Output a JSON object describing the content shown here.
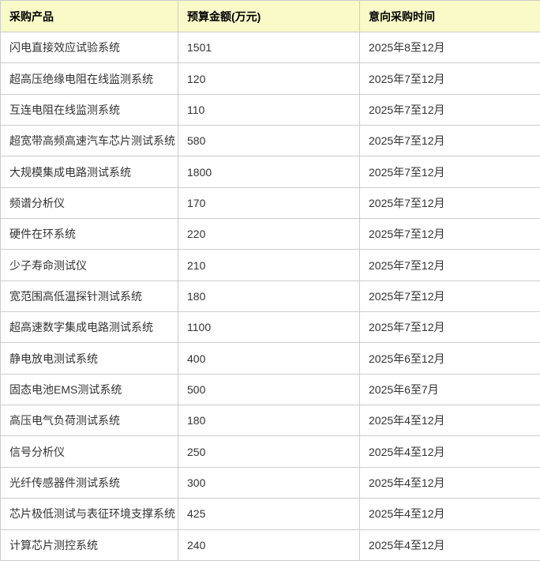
{
  "table": {
    "headers": [
      "采购产品",
      "预算金额(万元)",
      "意向采购时间"
    ],
    "rows": [
      [
        "闪电直接效应试验系统",
        "1501",
        "2025年8至12月"
      ],
      [
        "超高压绝缘电阻在线监测系统",
        "120",
        "2025年7至12月"
      ],
      [
        "互连电阻在线监测系统",
        "110",
        "2025年7至12月"
      ],
      [
        "超宽带高频高速汽车芯片测试系统",
        "580",
        "2025年7至12月"
      ],
      [
        "大规模集成电路测试系统",
        "1800",
        "2025年7至12月"
      ],
      [
        "频谱分析仪",
        "170",
        "2025年7至12月"
      ],
      [
        "硬件在环系统",
        "220",
        "2025年7至12月"
      ],
      [
        "少子寿命测试仪",
        "210",
        "2025年7至12月"
      ],
      [
        "宽范围高低温探针测试系统",
        "180",
        "2025年7至12月"
      ],
      [
        "超高速数字集成电路测试系统",
        "1100",
        "2025年7至12月"
      ],
      [
        "静电放电测试系统",
        "400",
        "2025年6至12月"
      ],
      [
        "固态电池EMS测试系统",
        "500",
        "2025年6至7月"
      ],
      [
        "高压电气负荷测试系统",
        "180",
        "2025年4至12月"
      ],
      [
        "信号分析仪",
        "250",
        "2025年4至12月"
      ],
      [
        "光纤传感器件测试系统",
        "300",
        "2025年4至12月"
      ],
      [
        "芯片极低测试与表征环境支撑系统",
        "425",
        "2025年4至12月"
      ],
      [
        "计算芯片测控系统",
        "240",
        "2025年4至12月"
      ]
    ]
  },
  "colors": {
    "header_bg": "#fafac8",
    "border": "#cccccc",
    "header_text": "#000000",
    "body_text": "#333333"
  }
}
